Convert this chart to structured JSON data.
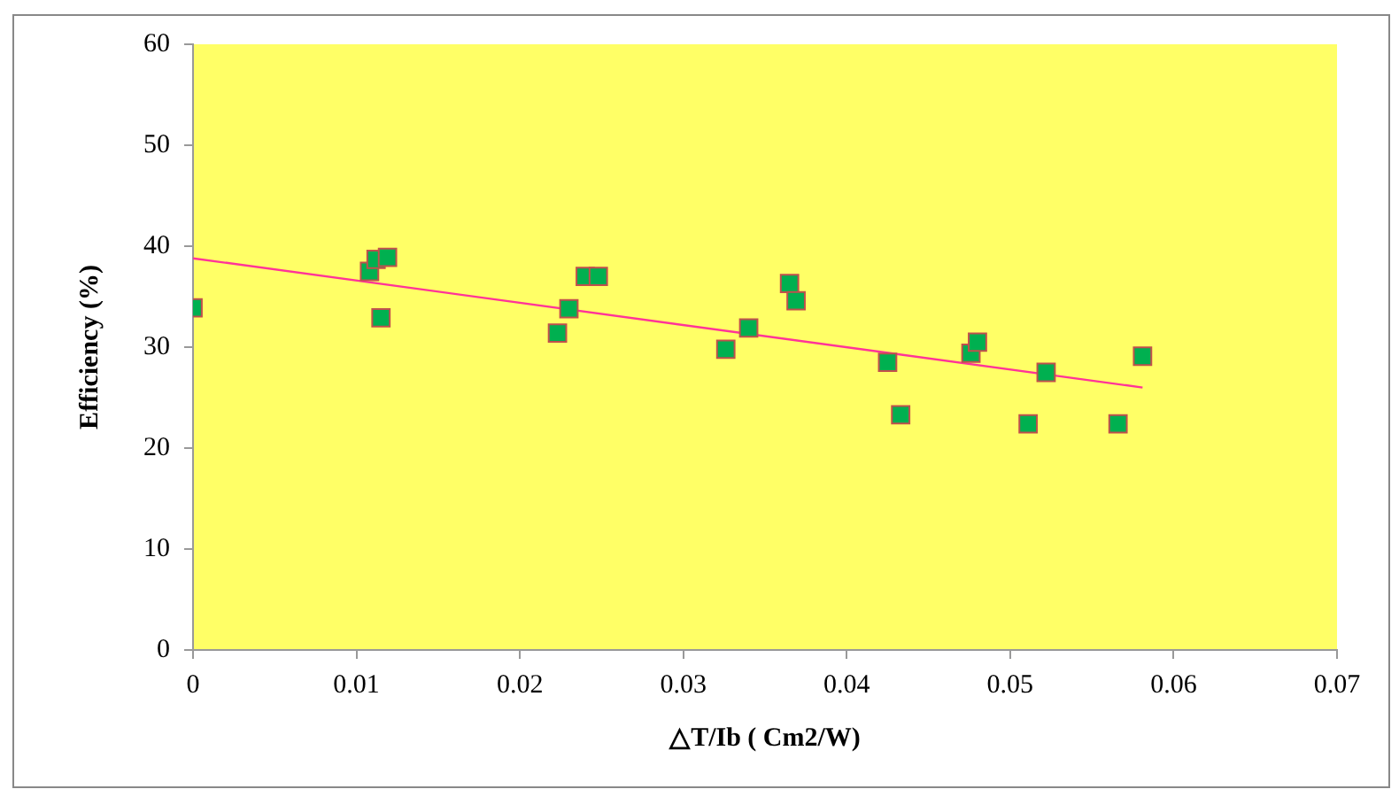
{
  "chart_data": {
    "type": "scatter",
    "xlabel": "△T/Ib ( Cm2/W)",
    "ylabel": "Efficiency (%)",
    "xlim": [
      0,
      0.07
    ],
    "xticks": [
      0,
      0.01,
      0.02,
      0.03,
      0.04,
      0.05,
      0.06,
      0.07
    ],
    "ylim": [
      0,
      60
    ],
    "yticks": [
      0,
      10,
      20,
      30,
      40,
      50,
      60
    ],
    "grid": false,
    "legend": false,
    "marker": "square",
    "series": [
      {
        "color": "#00b050",
        "x": [
          0,
          0.0108,
          0.0112,
          0.0119,
          0.0115,
          0.0223,
          0.023,
          0.024,
          0.0248,
          0.0326,
          0.034,
          0.0365,
          0.0369,
          0.0425,
          0.0433,
          0.0476,
          0.048,
          0.0511,
          0.0522,
          0.0566,
          0.0581
        ],
        "values": [
          33.9,
          37.5,
          38.7,
          38.9,
          32.9,
          31.4,
          33.8,
          37.0,
          37.0,
          29.8,
          31.9,
          36.3,
          34.6,
          28.5,
          23.3,
          29.4,
          30.5,
          22.4,
          27.5,
          22.4,
          29.1
        ]
      },
      {
        "type": "line",
        "color": "#ff3399",
        "x": [
          0,
          0.0581
        ],
        "values": [
          38.8,
          26.0
        ],
        "marker": "none"
      }
    ]
  }
}
